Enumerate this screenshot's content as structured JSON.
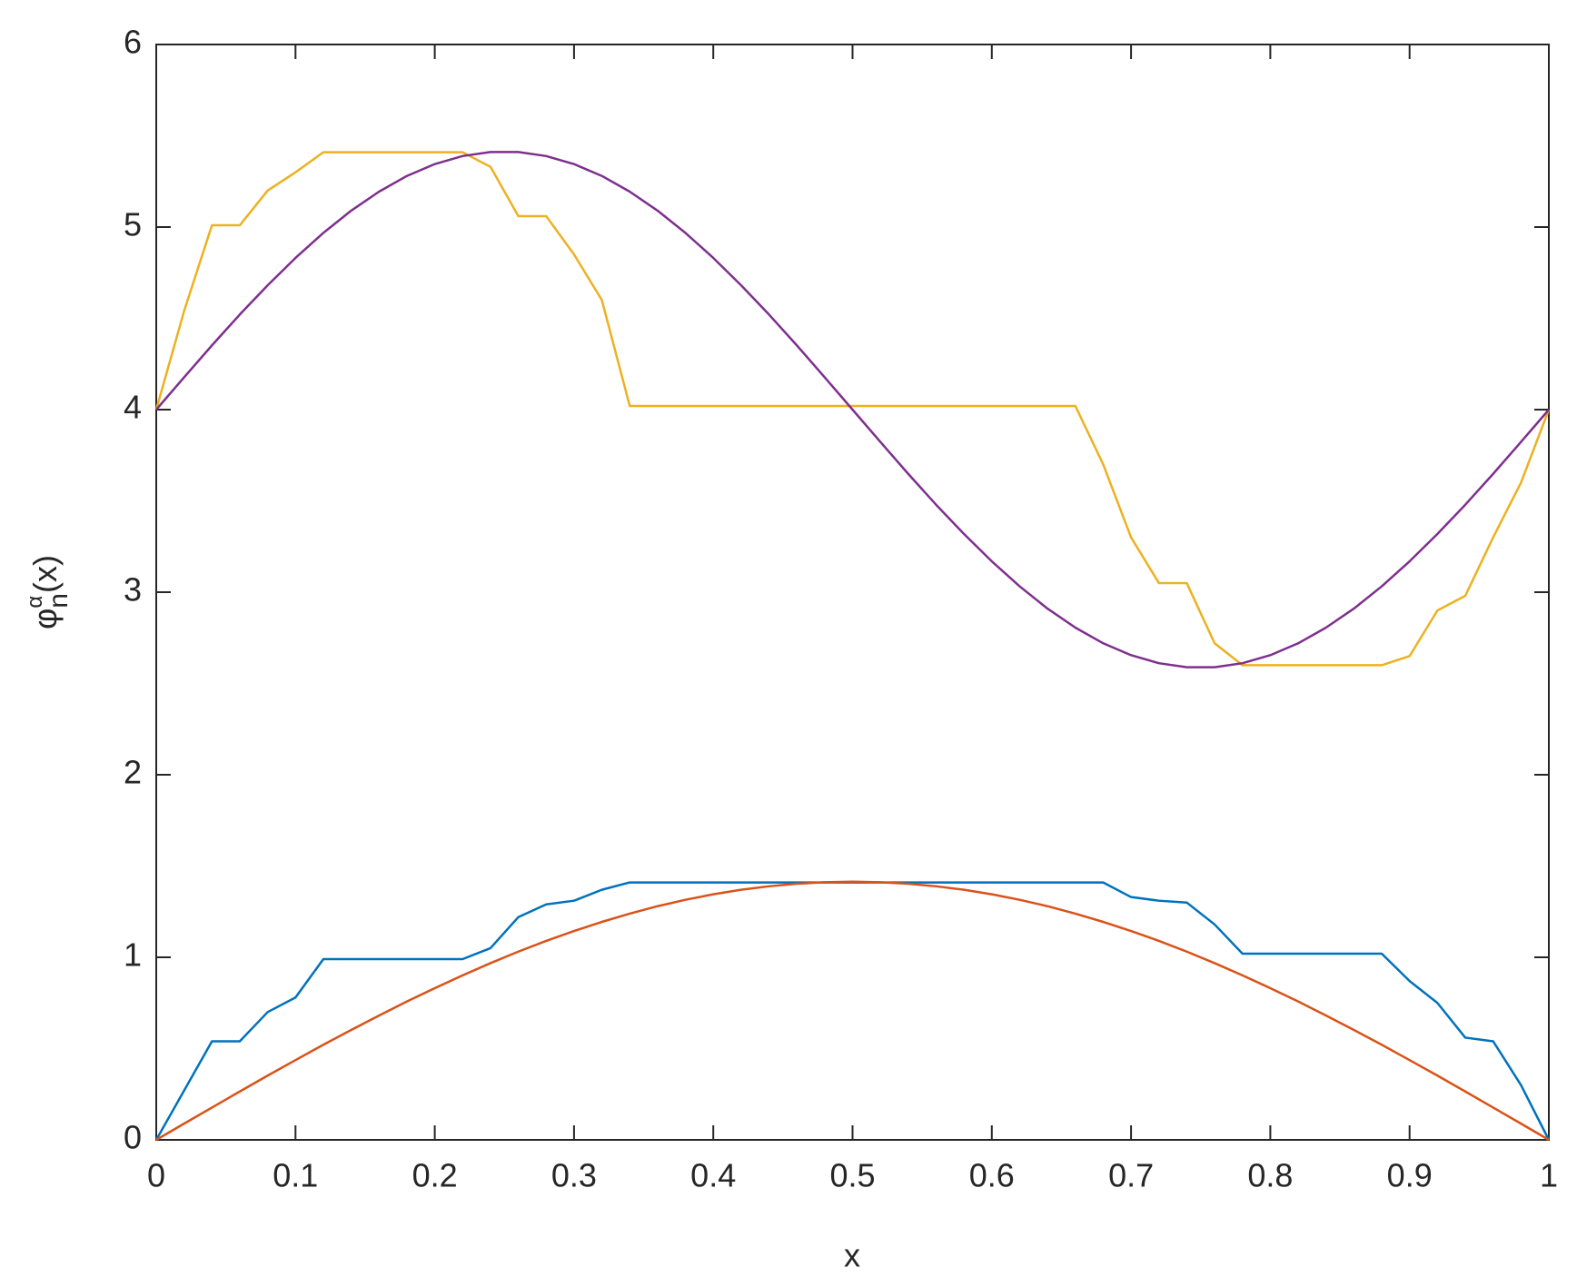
{
  "chart_data": {
    "type": "line",
    "xlabel": "x",
    "ylabel": {
      "base": "φ",
      "sub": "n",
      "sup": "α",
      "tail": "(x)"
    },
    "x": [
      0,
      0.02,
      0.04,
      0.06,
      0.08,
      0.1,
      0.12,
      0.14,
      0.16,
      0.18,
      0.2,
      0.22,
      0.24,
      0.26,
      0.28,
      0.3,
      0.32,
      0.34,
      0.36,
      0.38,
      0.4,
      0.42,
      0.44,
      0.46,
      0.48,
      0.5,
      0.52,
      0.54,
      0.56,
      0.58,
      0.6,
      0.62,
      0.64,
      0.66,
      0.68,
      0.7,
      0.72,
      0.74,
      0.76,
      0.78,
      0.8,
      0.82,
      0.84,
      0.86,
      0.88,
      0.9,
      0.92,
      0.94,
      0.96,
      0.98,
      1
    ],
    "series": [
      {
        "color": "#0072bd",
        "values": [
          0,
          0.27,
          0.54,
          0.54,
          0.7,
          0.78,
          0.99,
          0.99,
          0.99,
          0.99,
          0.99,
          0.99,
          1.05,
          1.22,
          1.29,
          1.31,
          1.37,
          1.41,
          1.41,
          1.41,
          1.41,
          1.41,
          1.41,
          1.41,
          1.41,
          1.41,
          1.41,
          1.41,
          1.41,
          1.41,
          1.41,
          1.41,
          1.41,
          1.41,
          1.41,
          1.33,
          1.31,
          1.3,
          1.18,
          1.02,
          1.02,
          1.02,
          1.02,
          1.02,
          1.02,
          0.87,
          0.75,
          0.56,
          0.54,
          0.3,
          0
        ]
      },
      {
        "color": "#d95319",
        "values": [
          0,
          0.089,
          0.177,
          0.265,
          0.352,
          0.437,
          0.521,
          0.602,
          0.681,
          0.758,
          0.831,
          0.901,
          0.968,
          1.031,
          1.09,
          1.144,
          1.194,
          1.239,
          1.28,
          1.315,
          1.345,
          1.37,
          1.389,
          1.403,
          1.411,
          1.414,
          1.411,
          1.403,
          1.389,
          1.37,
          1.345,
          1.315,
          1.28,
          1.239,
          1.194,
          1.144,
          1.09,
          1.031,
          0.968,
          0.901,
          0.831,
          0.758,
          0.681,
          0.602,
          0.521,
          0.437,
          0.352,
          0.265,
          0.177,
          0.089,
          0
        ]
      },
      {
        "color": "#edb120",
        "values": [
          4,
          4.54,
          5.01,
          5.01,
          5.2,
          5.3,
          5.41,
          5.41,
          5.41,
          5.41,
          5.41,
          5.41,
          5.33,
          5.06,
          5.06,
          4.85,
          4.6,
          4.02,
          4.02,
          4.02,
          4.02,
          4.02,
          4.02,
          4.02,
          4.02,
          4.02,
          4.02,
          4.02,
          4.02,
          4.02,
          4.02,
          4.02,
          4.02,
          4.02,
          3.7,
          3.3,
          3.05,
          3.05,
          2.72,
          2.6,
          2.6,
          2.6,
          2.6,
          2.6,
          2.6,
          2.65,
          2.9,
          2.98,
          3.3,
          3.6,
          4
        ]
      },
      {
        "color": "#7e2f8e",
        "values": [
          4,
          4.177,
          4.352,
          4.521,
          4.681,
          4.831,
          4.968,
          5.09,
          5.194,
          5.28,
          5.345,
          5.389,
          5.411,
          5.411,
          5.389,
          5.345,
          5.28,
          5.194,
          5.09,
          4.968,
          4.831,
          4.681,
          4.521,
          4.352,
          4.177,
          4,
          3.823,
          3.648,
          3.479,
          3.319,
          3.169,
          3.032,
          2.91,
          2.806,
          2.72,
          2.655,
          2.611,
          2.589,
          2.589,
          2.611,
          2.655,
          2.72,
          2.806,
          2.91,
          3.032,
          3.169,
          3.319,
          3.479,
          3.648,
          3.823,
          4
        ]
      }
    ],
    "xlim": [
      0,
      1
    ],
    "xticks": [
      0,
      0.1,
      0.2,
      0.3,
      0.4,
      0.5,
      0.6,
      0.7,
      0.8,
      0.9,
      1
    ],
    "ylim": [
      0,
      6
    ],
    "yticks": [
      0,
      1,
      2,
      3,
      4,
      5,
      6
    ],
    "grid": false
  }
}
